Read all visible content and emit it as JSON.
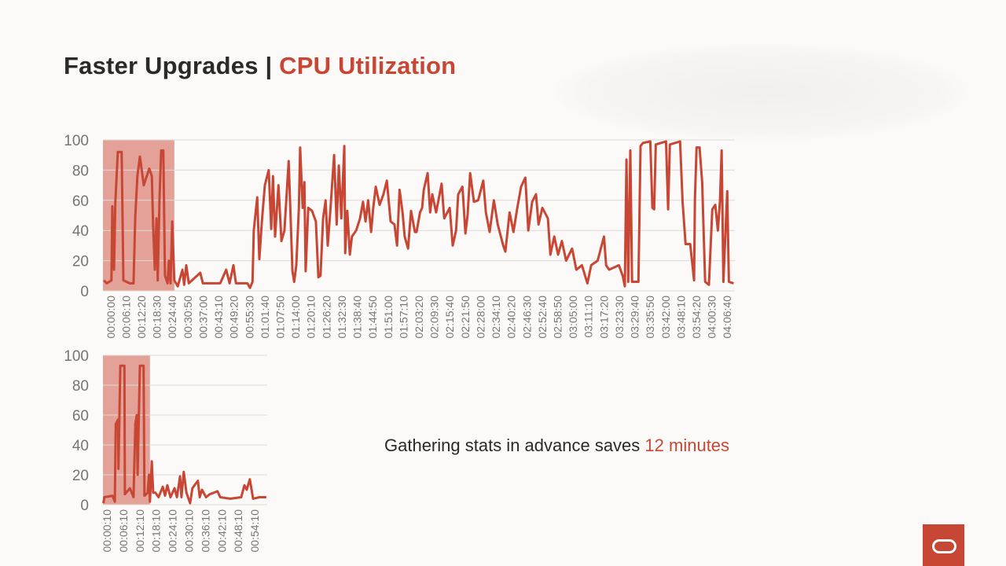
{
  "title": {
    "main": "Faster Upgrades |",
    "accent": "CPU Utilization"
  },
  "caption": {
    "text": "Gathering stats in advance saves",
    "accent": "12 minutes"
  },
  "colors": {
    "line": "#c74634",
    "highlight": "#e3a197",
    "grid": "#dedad6",
    "tick": "#7a736e",
    "accent": "#c74634"
  },
  "logo": {
    "icon": "oracle-logo-icon"
  },
  "chart_data": [
    {
      "type": "line",
      "title": "",
      "xlabel": "",
      "ylabel": "",
      "ylim": [
        0,
        100
      ],
      "yticks": [
        "0",
        "20",
        "40",
        "60",
        "80",
        "100"
      ],
      "xlim": [
        "00:00:00",
        "04:07:50"
      ],
      "grid": true,
      "highlight": {
        "from": "00:00:00",
        "to": "00:28:00"
      },
      "xticks": [
        "00:00:00",
        "00:06:10",
        "00:12:20",
        "00:18:30",
        "00:24:40",
        "00:30:50",
        "00:37:00",
        "00:43:10",
        "00:49:20",
        "00:55:30",
        "01:01:40",
        "01:07:50",
        "01:14:00",
        "01:20:10",
        "01:26:20",
        "01:32:30",
        "01:38:40",
        "01:44:50",
        "01:51:00",
        "01:57:10",
        "02:03:20",
        "02:09:30",
        "02:15:40",
        "02:21:50",
        "02:28:00",
        "02:34:10",
        "02:40:20",
        "02:46:30",
        "02:52:40",
        "02:58:50",
        "03:05:00",
        "03:11:10",
        "03:17:20",
        "03:23:30",
        "03:29:40",
        "03:35:50",
        "03:42:00",
        "03:48:10",
        "03:54:20",
        "04:00:30",
        "04:06:40"
      ],
      "points": [
        [
          "00:00:20",
          7
        ],
        [
          "00:01:30",
          5
        ],
        [
          "00:03:20",
          7
        ],
        [
          "00:03:40",
          56
        ],
        [
          "00:04:20",
          14
        ],
        [
          "00:04:50",
          58
        ],
        [
          "00:05:50",
          92
        ],
        [
          "00:07:20",
          92
        ],
        [
          "00:08:00",
          7
        ],
        [
          "00:10:30",
          5
        ],
        [
          "00:12:00",
          5
        ],
        [
          "00:12:40",
          49
        ],
        [
          "00:13:30",
          76
        ],
        [
          "00:14:30",
          89
        ],
        [
          "00:16:00",
          70
        ],
        [
          "00:18:10",
          81
        ],
        [
          "00:19:10",
          76
        ],
        [
          "00:19:40",
          44
        ],
        [
          "00:20:20",
          14
        ],
        [
          "00:21:00",
          48
        ],
        [
          "00:21:30",
          7
        ],
        [
          "00:22:10",
          60
        ],
        [
          "00:22:50",
          93
        ],
        [
          "00:23:40",
          93
        ],
        [
          "00:24:20",
          10
        ],
        [
          "00:25:20",
          5
        ],
        [
          "00:25:50",
          20
        ],
        [
          "00:26:30",
          5
        ],
        [
          "00:27:10",
          46
        ],
        [
          "00:28:00",
          7
        ],
        [
          "00:29:20",
          3
        ],
        [
          "00:31:10",
          14
        ],
        [
          "00:31:50",
          4
        ],
        [
          "00:32:40",
          17
        ],
        [
          "00:33:40",
          5
        ],
        [
          "00:38:10",
          12
        ],
        [
          "00:39:10",
          5
        ],
        [
          "00:46:00",
          5
        ],
        [
          "00:48:20",
          14
        ],
        [
          "00:49:40",
          5
        ],
        [
          "00:51:10",
          17
        ],
        [
          "00:52:10",
          5
        ],
        [
          "00:56:40",
          5
        ],
        [
          "00:57:40",
          2
        ],
        [
          "00:58:40",
          6
        ],
        [
          "00:59:10",
          40
        ],
        [
          "01:00:30",
          62
        ],
        [
          "01:01:20",
          21
        ],
        [
          "01:02:20",
          46
        ],
        [
          "01:03:30",
          70
        ],
        [
          "01:05:00",
          80
        ],
        [
          "01:06:00",
          41
        ],
        [
          "01:06:40",
          76
        ],
        [
          "01:07:30",
          36
        ],
        [
          "01:08:50",
          70
        ],
        [
          "01:10:00",
          33
        ],
        [
          "01:11:10",
          40
        ],
        [
          "01:12:50",
          86
        ],
        [
          "01:14:20",
          13
        ],
        [
          "01:15:00",
          6
        ],
        [
          "01:15:50",
          17
        ],
        [
          "01:16:50",
          55
        ],
        [
          "01:17:20",
          95
        ],
        [
          "01:18:20",
          55
        ],
        [
          "01:19:00",
          72
        ],
        [
          "01:19:30",
          13
        ],
        [
          "01:20:30",
          55
        ],
        [
          "01:22:00",
          53
        ],
        [
          "01:23:30",
          46
        ],
        [
          "01:24:30",
          9
        ],
        [
          "01:25:20",
          10
        ],
        [
          "01:26:20",
          48
        ],
        [
          "01:27:20",
          60
        ],
        [
          "01:28:10",
          30
        ],
        [
          "01:29:10",
          53
        ],
        [
          "01:30:40",
          90
        ],
        [
          "01:31:40",
          44
        ],
        [
          "01:32:30",
          83
        ],
        [
          "01:33:30",
          48
        ],
        [
          "01:34:40",
          96
        ],
        [
          "01:35:00",
          25
        ],
        [
          "01:35:50",
          53
        ],
        [
          "01:36:50",
          24
        ],
        [
          "01:37:40",
          36
        ],
        [
          "01:39:20",
          40
        ],
        [
          "01:40:50",
          48
        ],
        [
          "01:42:00",
          59
        ],
        [
          "01:43:00",
          46
        ],
        [
          "01:44:00",
          60
        ],
        [
          "01:45:10",
          39
        ],
        [
          "01:46:00",
          55
        ],
        [
          "01:47:00",
          69
        ],
        [
          "01:48:30",
          57
        ],
        [
          "01:50:00",
          64
        ],
        [
          "01:51:20",
          73
        ],
        [
          "01:52:50",
          46
        ],
        [
          "01:54:20",
          44
        ],
        [
          "01:55:20",
          30
        ],
        [
          "01:56:20",
          67
        ],
        [
          "01:57:30",
          52
        ],
        [
          "01:58:20",
          36
        ],
        [
          "01:59:40",
          28
        ],
        [
          "02:00:50",
          53
        ],
        [
          "02:02:20",
          39
        ],
        [
          "02:03:00",
          39
        ],
        [
          "02:04:20",
          52
        ],
        [
          "02:05:10",
          55
        ],
        [
          "02:05:50",
          67
        ],
        [
          "02:07:20",
          78
        ],
        [
          "02:08:20",
          52
        ],
        [
          "02:09:10",
          64
        ],
        [
          "02:10:40",
          52
        ],
        [
          "02:12:50",
          71
        ],
        [
          "02:13:50",
          48
        ],
        [
          "02:16:00",
          55
        ],
        [
          "02:17:10",
          30
        ],
        [
          "02:18:30",
          40
        ],
        [
          "02:19:20",
          64
        ],
        [
          "02:21:00",
          69
        ],
        [
          "02:22:10",
          38
        ],
        [
          "02:23:00",
          50
        ],
        [
          "02:24:00",
          78
        ],
        [
          "02:25:30",
          59
        ],
        [
          "02:27:10",
          60
        ],
        [
          "02:29:10",
          73
        ],
        [
          "02:30:10",
          52
        ],
        [
          "02:31:40",
          39
        ],
        [
          "02:33:20",
          60
        ],
        [
          "02:34:50",
          44
        ],
        [
          "02:37:00",
          30
        ],
        [
          "02:37:50",
          26
        ],
        [
          "02:39:30",
          52
        ],
        [
          "02:41:00",
          39
        ],
        [
          "02:42:30",
          55
        ],
        [
          "02:44:00",
          69
        ],
        [
          "02:45:40",
          75
        ],
        [
          "02:46:50",
          40
        ],
        [
          "02:48:20",
          59
        ],
        [
          "02:49:50",
          64
        ],
        [
          "02:50:50",
          44
        ],
        [
          "02:52:20",
          55
        ],
        [
          "02:54:30",
          48
        ],
        [
          "02:55:30",
          24
        ],
        [
          "02:57:00",
          36
        ],
        [
          "02:58:30",
          24
        ],
        [
          "03:00:00",
          33
        ],
        [
          "03:01:40",
          20
        ],
        [
          "03:04:00",
          28
        ],
        [
          "03:05:40",
          14
        ],
        [
          "03:07:50",
          17
        ],
        [
          "03:10:00",
          5
        ],
        [
          "03:11:30",
          17
        ],
        [
          "03:14:00",
          20
        ],
        [
          "03:16:30",
          36
        ],
        [
          "03:17:20",
          17
        ],
        [
          "03:18:30",
          14
        ],
        [
          "03:22:20",
          17
        ],
        [
          "03:23:50",
          10
        ],
        [
          "03:24:40",
          3
        ],
        [
          "03:25:20",
          87
        ],
        [
          "03:26:00",
          6
        ],
        [
          "03:26:50",
          93
        ],
        [
          "03:27:30",
          6
        ],
        [
          "03:30:00",
          6
        ],
        [
          "03:30:50",
          96
        ],
        [
          "03:31:50",
          98
        ],
        [
          "03:34:40",
          99
        ],
        [
          "03:35:30",
          55
        ],
        [
          "03:36:10",
          54
        ],
        [
          "03:36:50",
          97
        ],
        [
          "03:40:50",
          99
        ],
        [
          "03:41:40",
          54
        ],
        [
          "03:42:20",
          97
        ],
        [
          "03:46:20",
          99
        ],
        [
          "03:47:20",
          59
        ],
        [
          "03:48:30",
          31
        ],
        [
          "03:50:20",
          31
        ],
        [
          "03:51:50",
          7
        ],
        [
          "03:52:10",
          61
        ],
        [
          "03:52:50",
          95
        ],
        [
          "03:54:00",
          95
        ],
        [
          "03:55:00",
          72
        ],
        [
          "03:56:10",
          6
        ],
        [
          "03:57:40",
          4
        ],
        [
          "03:59:00",
          54
        ],
        [
          "04:00:10",
          57
        ],
        [
          "04:01:10",
          40
        ],
        [
          "04:02:00",
          60
        ],
        [
          "04:02:40",
          93
        ],
        [
          "04:03:20",
          6
        ],
        [
          "04:04:50",
          66
        ],
        [
          "04:05:30",
          6
        ],
        [
          "04:07:20",
          5
        ]
      ]
    },
    {
      "type": "line",
      "title": "",
      "xlabel": "",
      "ylabel": "",
      "ylim": [
        0,
        100
      ],
      "yticks": [
        "0",
        "20",
        "40",
        "60",
        "80",
        "100"
      ],
      "xlim": [
        "00:00:00",
        "01:00:00"
      ],
      "grid": true,
      "highlight": {
        "from": "00:00:00",
        "to": "00:17:10"
      },
      "xticks": [
        "00:00:10",
        "00:06:10",
        "00:12:10",
        "00:18:10",
        "00:24:10",
        "00:30:10",
        "00:36:10",
        "00:42:10",
        "00:48:10",
        "00:54:10"
      ],
      "points": [
        [
          "00:00:10",
          1
        ],
        [
          "00:00:30",
          5
        ],
        [
          "00:03:30",
          6
        ],
        [
          "00:04:20",
          2
        ],
        [
          "00:04:40",
          54
        ],
        [
          "00:05:30",
          57
        ],
        [
          "00:05:40",
          24
        ],
        [
          "00:06:20",
          93
        ],
        [
          "00:07:50",
          93
        ],
        [
          "00:08:00",
          7
        ],
        [
          "00:09:50",
          11
        ],
        [
          "00:11:10",
          5
        ],
        [
          "00:11:50",
          54
        ],
        [
          "00:12:20",
          60
        ],
        [
          "00:12:40",
          20
        ],
        [
          "00:13:30",
          93
        ],
        [
          "00:14:50",
          93
        ],
        [
          "00:15:10",
          6
        ],
        [
          "00:16:20",
          8
        ],
        [
          "00:16:50",
          20
        ],
        [
          "00:17:10",
          2
        ],
        [
          "00:17:50",
          29
        ],
        [
          "00:18:20",
          8
        ],
        [
          "00:19:10",
          8
        ],
        [
          "00:20:20",
          5
        ],
        [
          "00:21:50",
          12
        ],
        [
          "00:22:40",
          6
        ],
        [
          "00:23:30",
          13
        ],
        [
          "00:24:40",
          5
        ],
        [
          "00:26:10",
          11
        ],
        [
          "00:27:00",
          5
        ],
        [
          "00:28:10",
          19
        ],
        [
          "00:28:40",
          5
        ],
        [
          "00:29:30",
          22
        ],
        [
          "00:30:30",
          8
        ],
        [
          "00:31:50",
          1
        ],
        [
          "00:32:40",
          11
        ],
        [
          "00:33:50",
          14
        ],
        [
          "00:34:40",
          16
        ],
        [
          "00:35:20",
          5
        ],
        [
          "00:36:10",
          10
        ],
        [
          "00:37:40",
          5
        ],
        [
          "00:39:00",
          7
        ],
        [
          "00:40:30",
          8
        ],
        [
          "00:41:50",
          9
        ],
        [
          "00:42:50",
          5
        ],
        [
          "00:46:30",
          4
        ],
        [
          "00:50:30",
          5
        ],
        [
          "00:51:40",
          13
        ],
        [
          "00:52:30",
          10
        ],
        [
          "00:53:40",
          17
        ],
        [
          "00:54:50",
          4
        ],
        [
          "00:57:10",
          5
        ],
        [
          "00:59:40",
          5
        ]
      ]
    }
  ]
}
